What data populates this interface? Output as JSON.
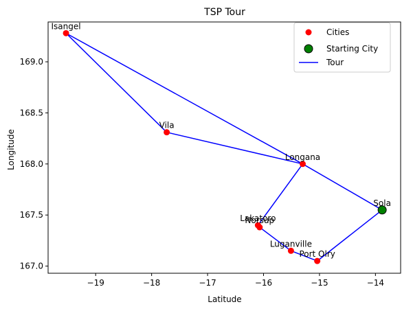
{
  "chart_data": {
    "type": "scatter",
    "title": "TSP Tour",
    "xlabel": "Latitude",
    "ylabel": "Longitude",
    "xlim": [
      -19.85,
      -13.55
    ],
    "ylim": [
      166.93,
      169.39
    ],
    "xticks": [
      -19,
      -18,
      -17,
      -16,
      -15,
      -14
    ],
    "xtick_labels": [
      "−19",
      "−18",
      "−17",
      "−16",
      "−15",
      "−14"
    ],
    "yticks": [
      167.0,
      167.5,
      168.0,
      168.5,
      169.0
    ],
    "ytick_labels": [
      "167.0",
      "167.5",
      "168.0",
      "168.5",
      "169.0"
    ],
    "grid": false,
    "legend_position": "top-right",
    "colors": {
      "cities": "#ff0000",
      "start_fill": "#008000",
      "start_edge": "#000000",
      "tour": "#0000ff"
    },
    "series": [
      {
        "name": "Cities",
        "kind": "scatter",
        "points": [
          {
            "label": "Isangel",
            "x": -19.53,
            "y": 169.28
          },
          {
            "label": "Vila",
            "x": -17.73,
            "y": 168.31
          },
          {
            "label": "Longana",
            "x": -15.3,
            "y": 168.0
          },
          {
            "label": "Sola",
            "x": -13.88,
            "y": 167.55
          },
          {
            "label": "Lakatoro",
            "x": -16.1,
            "y": 167.4
          },
          {
            "label": "Norsup",
            "x": -16.07,
            "y": 167.38
          },
          {
            "label": "Luganville",
            "x": -15.51,
            "y": 167.15
          },
          {
            "label": "Port Olry",
            "x": -15.04,
            "y": 167.05
          }
        ]
      },
      {
        "name": "Starting City",
        "kind": "start",
        "points": [
          {
            "label": "Sola",
            "x": -13.88,
            "y": 167.55
          }
        ]
      },
      {
        "name": "Tour",
        "kind": "line",
        "order": [
          "Sola",
          "Longana",
          "Isangel",
          "Vila",
          "Longana",
          "Lakatoro",
          "Norsup",
          "Luganville",
          "Port Olry",
          "Sola"
        ]
      }
    ],
    "legend": [
      "Cities",
      "Starting City",
      "Tour"
    ]
  }
}
